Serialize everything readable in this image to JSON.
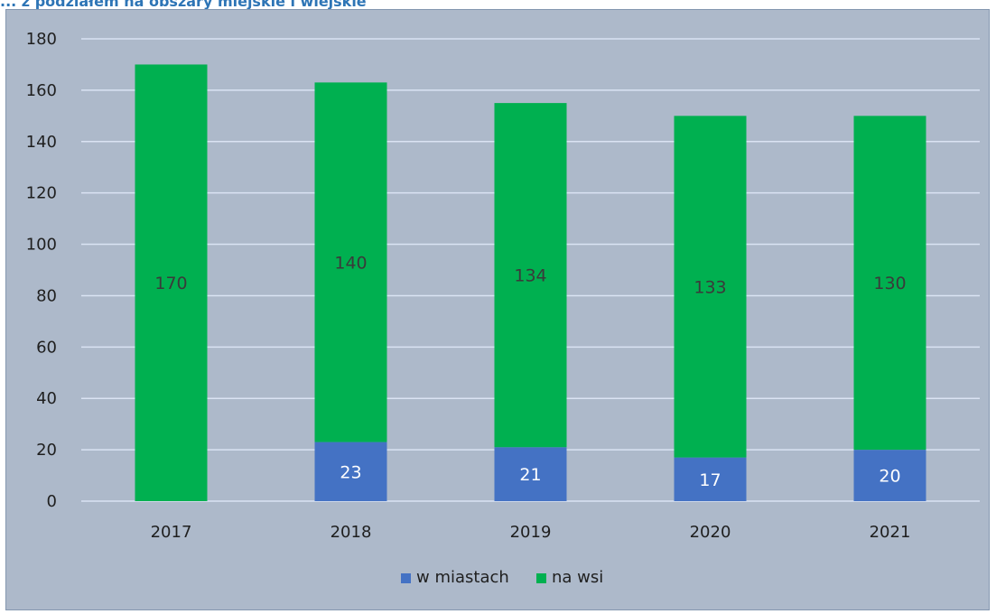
{
  "caption": "... z podziałem na obszary miejskie i wiejskie",
  "chart_data": {
    "type": "bar",
    "stacked": true,
    "title": "",
    "xlabel": "",
    "ylabel": "",
    "categories": [
      "2017",
      "2018",
      "2019",
      "2020",
      "2021"
    ],
    "series": [
      {
        "name": "w miastach",
        "color": "#4472c4",
        "values": [
          0,
          23,
          21,
          17,
          20
        ],
        "labels": [
          "",
          "23",
          "21",
          "17",
          "20"
        ]
      },
      {
        "name": "na wsi",
        "color": "#00b050",
        "values": [
          170,
          140,
          134,
          133,
          130
        ],
        "labels": [
          "170",
          "140",
          "134",
          "133",
          "130"
        ]
      }
    ],
    "ylim": [
      0,
      180
    ],
    "yticks": [
      0,
      20,
      40,
      60,
      80,
      100,
      120,
      140,
      160,
      180
    ],
    "grid": true,
    "gridline_color": "#dae3f3",
    "legend_position": "bottom",
    "label_color_on_blue": "#ffffff",
    "label_color_on_green": "#3a3a3a"
  }
}
